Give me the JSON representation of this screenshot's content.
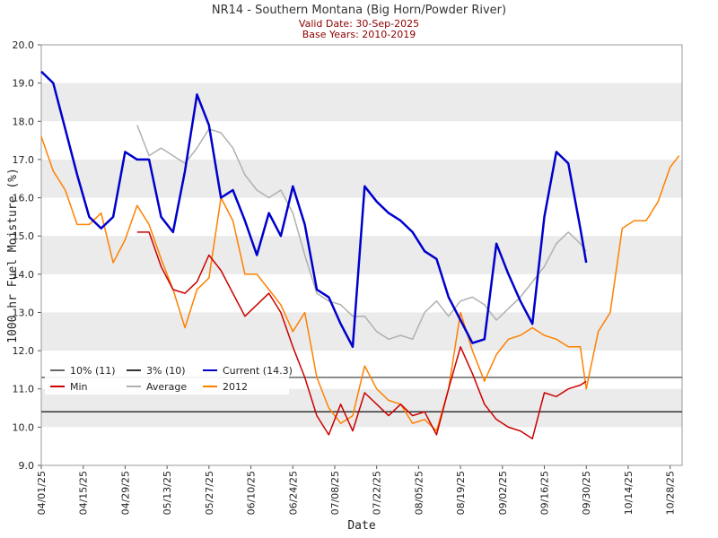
{
  "chart_data": {
    "type": "line",
    "title": "NR14 - Southern Montana (Big Horn/Powder River)",
    "subtitle": [
      "Valid Date: 30-Sep-2025",
      "Base Years: 2010-2019"
    ],
    "xlabel": "Date",
    "ylabel": "1000 hr Fuel Moisture (%)",
    "x": [
      "2025-04-01",
      "2025-04-05",
      "2025-04-09",
      "2025-04-13",
      "2025-04-17",
      "2025-04-21",
      "2025-04-25",
      "2025-04-29",
      "2025-05-03",
      "2025-05-07",
      "2025-05-11",
      "2025-05-15",
      "2025-05-19",
      "2025-05-23",
      "2025-05-27",
      "2025-05-31",
      "2025-06-04",
      "2025-06-08",
      "2025-06-12",
      "2025-06-16",
      "2025-06-20",
      "2025-06-24",
      "2025-06-28",
      "2025-07-02",
      "2025-07-06",
      "2025-07-10",
      "2025-07-14",
      "2025-07-18",
      "2025-07-22",
      "2025-07-26",
      "2025-07-30",
      "2025-08-03",
      "2025-08-07",
      "2025-08-11",
      "2025-08-15",
      "2025-08-19",
      "2025-08-23",
      "2025-08-27",
      "2025-08-31",
      "2025-09-04",
      "2025-09-08",
      "2025-09-12",
      "2025-09-16",
      "2025-09-20",
      "2025-09-24",
      "2025-09-28",
      "2025-09-30",
      "2025-10-04",
      "2025-10-08",
      "2025-10-12",
      "2025-10-16",
      "2025-10-20",
      "2025-10-24",
      "2025-10-28",
      "2025-10-31"
    ],
    "xlim": [
      "2025-04-01",
      "2025-11-01"
    ],
    "xticks": [
      {
        "value": "2025-04-01",
        "label": "04/01/25"
      },
      {
        "value": "2025-04-15",
        "label": "04/15/25"
      },
      {
        "value": "2025-04-29",
        "label": "04/29/25"
      },
      {
        "value": "2025-05-13",
        "label": "05/13/25"
      },
      {
        "value": "2025-05-27",
        "label": "05/27/25"
      },
      {
        "value": "2025-06-10",
        "label": "06/10/25"
      },
      {
        "value": "2025-06-24",
        "label": "06/24/25"
      },
      {
        "value": "2025-07-08",
        "label": "07/08/25"
      },
      {
        "value": "2025-07-22",
        "label": "07/22/25"
      },
      {
        "value": "2025-08-05",
        "label": "08/05/25"
      },
      {
        "value": "2025-08-19",
        "label": "08/19/25"
      },
      {
        "value": "2025-09-02",
        "label": "09/02/25"
      },
      {
        "value": "2025-09-16",
        "label": "09/16/25"
      },
      {
        "value": "2025-09-30",
        "label": "09/30/25"
      },
      {
        "value": "2025-10-14",
        "label": "10/14/25"
      },
      {
        "value": "2025-10-28",
        "label": "10/28/25"
      }
    ],
    "ylim": [
      9,
      20
    ],
    "yticks": [
      {
        "value": 9,
        "label": "9.0"
      },
      {
        "value": 10,
        "label": "10.0"
      },
      {
        "value": 11,
        "label": "11.0"
      },
      {
        "value": 12,
        "label": "12.0"
      },
      {
        "value": 13,
        "label": "13.0"
      },
      {
        "value": 14,
        "label": "14.0"
      },
      {
        "value": 15,
        "label": "15.0"
      },
      {
        "value": 16,
        "label": "16.0"
      },
      {
        "value": 17,
        "label": "17.0"
      },
      {
        "value": 18,
        "label": "18.0"
      },
      {
        "value": 19,
        "label": "19.0"
      },
      {
        "value": 20,
        "label": "20.0"
      }
    ],
    "banded_grid": true,
    "hlines": [
      {
        "name": "10% (11)",
        "value": 11.3,
        "color": "#666666"
      },
      {
        "name": "3% (10)",
        "value": 10.4,
        "color": "#333333"
      }
    ],
    "series": [
      {
        "name": "Current (14.3)",
        "color": "#0000cc",
        "linewidth": 2.5,
        "values": [
          19.3,
          19.0,
          17.8,
          16.6,
          15.5,
          15.2,
          15.5,
          17.2,
          17.0,
          17.0,
          15.5,
          15.1,
          16.7,
          18.7,
          17.9,
          16.0,
          16.2,
          15.4,
          14.5,
          15.6,
          15.0,
          16.3,
          15.3,
          13.6,
          13.4,
          12.7,
          12.1,
          16.3,
          15.9,
          15.6,
          15.4,
          15.1,
          14.6,
          14.4,
          13.4,
          12.8,
          12.2,
          12.3,
          14.8,
          14.0,
          13.3,
          12.7,
          15.5,
          17.2,
          16.9,
          15.2,
          14.3,
          null,
          null,
          null,
          null,
          null,
          null,
          null,
          null
        ]
      },
      {
        "name": "Min",
        "color": "#cc0000",
        "linewidth": 1.5,
        "values": [
          null,
          null,
          null,
          null,
          null,
          null,
          null,
          null,
          15.1,
          15.1,
          14.2,
          13.6,
          13.5,
          13.8,
          14.5,
          14.1,
          13.5,
          12.9,
          13.2,
          13.5,
          13.0,
          12.1,
          11.3,
          10.3,
          9.8,
          10.6,
          9.9,
          10.9,
          10.6,
          10.3,
          10.6,
          10.3,
          10.4,
          9.8,
          11.0,
          12.1,
          11.4,
          10.6,
          10.2,
          10.0,
          9.9,
          9.7,
          10.9,
          10.8,
          11.0,
          11.1,
          11.2,
          null,
          null,
          null,
          null,
          null,
          null,
          null,
          null
        ]
      },
      {
        "name": "Average",
        "color": "#b0b0b0",
        "linewidth": 1.5,
        "values": [
          null,
          null,
          null,
          null,
          null,
          null,
          null,
          null,
          17.9,
          17.1,
          17.3,
          17.1,
          16.9,
          17.3,
          17.8,
          17.7,
          17.3,
          16.6,
          16.2,
          16.0,
          16.2,
          15.6,
          14.5,
          13.5,
          13.3,
          13.2,
          12.9,
          12.9,
          12.5,
          12.3,
          12.4,
          12.3,
          13.0,
          13.3,
          12.9,
          13.3,
          13.4,
          13.2,
          12.8,
          13.1,
          13.4,
          13.8,
          14.2,
          14.8,
          15.1,
          14.8,
          14.6,
          null,
          null,
          null,
          null,
          null,
          null,
          null,
          null
        ]
      },
      {
        "name": "2012",
        "color": "#ff8000",
        "linewidth": 1.5,
        "values": [
          17.6,
          16.7,
          16.2,
          15.3,
          15.3,
          15.6,
          14.3,
          14.9,
          15.8,
          15.3,
          14.4,
          13.6,
          12.6,
          13.6,
          13.9,
          16.0,
          15.4,
          14.0,
          14.0,
          13.6,
          13.2,
          12.5,
          13.0,
          11.3,
          10.5,
          10.1,
          10.3,
          11.6,
          11.0,
          10.7,
          10.6,
          10.1,
          10.2,
          9.9,
          11.0,
          13.0,
          12.0,
          11.2,
          11.9,
          12.3,
          12.4,
          12.6,
          12.4,
          12.3,
          12.1,
          12.1,
          11.0,
          12.5,
          13.0,
          15.2,
          15.4,
          15.4,
          15.9,
          16.8,
          17.1
        ]
      }
    ]
  }
}
